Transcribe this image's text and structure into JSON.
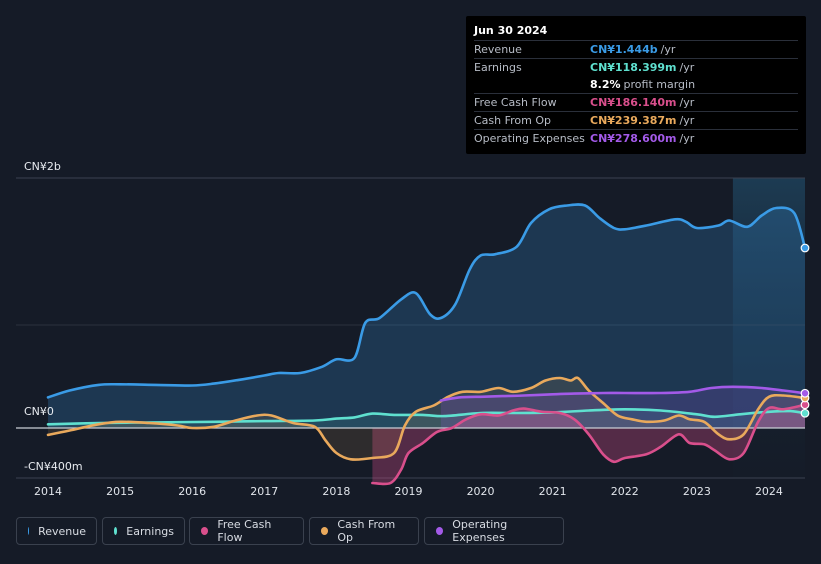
{
  "tooltip": {
    "date": "Jun 30 2024",
    "rows": [
      {
        "label": "Revenue",
        "value": "CN¥1.444b",
        "unit": "/yr",
        "color": "#3a9be6"
      },
      {
        "label": "Earnings",
        "value": "CN¥118.399m",
        "unit": "/yr",
        "color": "#5fe0cf"
      },
      {
        "label": "",
        "value": "8.2%",
        "unit": "profit margin",
        "color": "#ffffff"
      },
      {
        "label": "Free Cash Flow",
        "value": "CN¥186.140m",
        "unit": "/yr",
        "color": "#d94f8c"
      },
      {
        "label": "Cash From Op",
        "value": "CN¥239.387m",
        "unit": "/yr",
        "color": "#e9a95c"
      },
      {
        "label": "Operating Expenses",
        "value": "CN¥278.600m",
        "unit": "/yr",
        "color": "#a35ae8"
      }
    ]
  },
  "axis": {
    "y_top_label": "CN¥2b",
    "y_zero_label": "CN¥0",
    "y_bottom_label": "-CN¥400m"
  },
  "legend": [
    {
      "label": "Revenue",
      "color": "#3a9be6"
    },
    {
      "label": "Earnings",
      "color": "#5fe0cf"
    },
    {
      "label": "Free Cash Flow",
      "color": "#d94f8c"
    },
    {
      "label": "Cash From Op",
      "color": "#e9a95c"
    },
    {
      "label": "Operating Expenses",
      "color": "#a35ae8"
    }
  ],
  "chart_data": {
    "type": "area",
    "x_ticks": [
      "2014",
      "2015",
      "2016",
      "2017",
      "2018",
      "2019",
      "2020",
      "2021",
      "2022",
      "2023",
      "2024"
    ],
    "ylim": [
      -400,
      2000
    ],
    "y_unit": "CN¥m",
    "forecast_shade_from": 2023.5,
    "series": [
      {
        "name": "Revenue",
        "color": "#3a9be6",
        "fill": true,
        "x": [
          2014.0,
          2014.3,
          2014.7,
          2015.0,
          2015.5,
          2016.0,
          2016.3,
          2016.7,
          2017.0,
          2017.2,
          2017.5,
          2017.8,
          2018.0,
          2018.25,
          2018.4,
          2018.6,
          2018.9,
          2019.1,
          2019.3,
          2019.45,
          2019.65,
          2019.85,
          2020.0,
          2020.2,
          2020.5,
          2020.7,
          2020.95,
          2021.2,
          2021.45,
          2021.65,
          2021.85,
          2022.0,
          2022.3,
          2022.7,
          2022.85,
          2023.0,
          2023.3,
          2023.45,
          2023.7,
          2023.9,
          2024.1,
          2024.35,
          2024.5
        ],
        "y": [
          245,
          300,
          345,
          350,
          345,
          340,
          355,
          390,
          420,
          440,
          440,
          490,
          550,
          560,
          840,
          880,
          1030,
          1080,
          910,
          880,
          990,
          1270,
          1380,
          1390,
          1450,
          1640,
          1750,
          1780,
          1780,
          1680,
          1600,
          1590,
          1620,
          1670,
          1650,
          1600,
          1620,
          1660,
          1610,
          1700,
          1760,
          1720,
          1440
        ]
      },
      {
        "name": "Earnings",
        "color": "#5fe0cf",
        "fill": true,
        "x": [
          2014.0,
          2014.7,
          2015.5,
          2016.3,
          2017.0,
          2017.7,
          2018.0,
          2018.25,
          2018.5,
          2018.8,
          2019.2,
          2019.5,
          2020.0,
          2020.5,
          2021.0,
          2021.5,
          2022.0,
          2022.5,
          2023.0,
          2023.25,
          2023.6,
          2024.0,
          2024.3,
          2024.5
        ],
        "y": [
          30,
          40,
          45,
          50,
          55,
          60,
          75,
          85,
          115,
          105,
          105,
          95,
          120,
          120,
          125,
          140,
          150,
          140,
          110,
          90,
          110,
          130,
          135,
          118
        ]
      },
      {
        "name": "Free Cash Flow",
        "color": "#d94f8c",
        "fill": true,
        "x": [
          2018.5,
          2018.75,
          2018.9,
          2019.0,
          2019.2,
          2019.4,
          2019.6,
          2019.8,
          2020.0,
          2020.25,
          2020.45,
          2020.6,
          2020.85,
          2021.1,
          2021.3,
          2021.5,
          2021.7,
          2021.85,
          2022.0,
          2022.3,
          2022.5,
          2022.75,
          2022.9,
          2023.1,
          2023.25,
          2023.45,
          2023.65,
          2023.85,
          2024.0,
          2024.2,
          2024.5
        ],
        "y": [
          -440,
          -440,
          -330,
          -200,
          -120,
          -30,
          0,
          70,
          110,
          100,
          140,
          155,
          130,
          120,
          70,
          -50,
          -210,
          -270,
          -240,
          -210,
          -150,
          -50,
          -120,
          -130,
          -180,
          -250,
          -200,
          50,
          160,
          150,
          186
        ]
      },
      {
        "name": "Cash From Op",
        "color": "#e9a95c",
        "fill": true,
        "x": [
          2014.0,
          2014.3,
          2014.7,
          2015.0,
          2015.4,
          2015.8,
          2016.0,
          2016.3,
          2016.6,
          2016.9,
          2017.1,
          2017.4,
          2017.7,
          2017.85,
          2018.0,
          2018.2,
          2018.5,
          2018.8,
          2018.95,
          2019.1,
          2019.35,
          2019.55,
          2019.75,
          2020.0,
          2020.25,
          2020.45,
          2020.7,
          2020.9,
          2021.1,
          2021.25,
          2021.35,
          2021.5,
          2021.7,
          2021.9,
          2022.1,
          2022.3,
          2022.55,
          2022.75,
          2022.9,
          2023.1,
          2023.3,
          2023.45,
          2023.65,
          2023.85,
          2024.0,
          2024.2,
          2024.5
        ],
        "y": [
          -55,
          -20,
          30,
          50,
          40,
          20,
          0,
          10,
          60,
          100,
          100,
          40,
          10,
          -100,
          -200,
          -250,
          -240,
          -200,
          20,
          130,
          180,
          250,
          290,
          290,
          320,
          290,
          320,
          380,
          400,
          380,
          400,
          300,
          200,
          100,
          70,
          50,
          60,
          100,
          70,
          50,
          -50,
          -90,
          -50,
          150,
          250,
          260,
          240
        ]
      },
      {
        "name": "Operating Expenses",
        "color": "#a35ae8",
        "fill": true,
        "x": [
          2019.45,
          2019.7,
          2020.0,
          2020.3,
          2020.6,
          2021.0,
          2021.3,
          2021.7,
          2022.0,
          2022.5,
          2022.9,
          2023.2,
          2023.5,
          2023.9,
          2024.2,
          2024.5
        ],
        "y": [
          220,
          245,
          250,
          255,
          260,
          270,
          275,
          280,
          280,
          280,
          290,
          320,
          330,
          320,
          300,
          278
        ]
      }
    ]
  }
}
